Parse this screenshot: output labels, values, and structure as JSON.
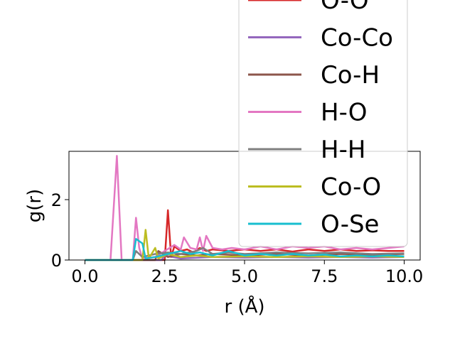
{
  "chart_data": {
    "type": "line",
    "xlabel": "r (Å)",
    "ylabel": "g(r)",
    "xlim": [
      -0.5,
      10.5
    ],
    "ylim": [
      0,
      3.6
    ],
    "xticks": [
      "0.0",
      "2.5",
      "5.0",
      "7.5",
      "10.0"
    ],
    "xtick_values": [
      0,
      2.5,
      5,
      7.5,
      10
    ],
    "yticks": [
      "0",
      "2"
    ],
    "ytick_values": [
      0,
      2
    ],
    "legend_position": "upper-right, partially cut off at the top",
    "series": [
      {
        "name": "O-O",
        "color": "#d62728",
        "points": [
          [
            0,
            0
          ],
          [
            2.5,
            0
          ],
          [
            2.6,
            1.65
          ],
          [
            2.7,
            0.1
          ],
          [
            2.8,
            0.45
          ],
          [
            3.0,
            0.3
          ],
          [
            3.2,
            0.35
          ],
          [
            3.4,
            0.25
          ],
          [
            3.6,
            0.4
          ],
          [
            3.8,
            0.3
          ],
          [
            4.0,
            0.35
          ],
          [
            4.5,
            0.3
          ],
          [
            5.0,
            0.35
          ],
          [
            5.5,
            0.3
          ],
          [
            6.0,
            0.35
          ],
          [
            6.5,
            0.28
          ],
          [
            7.0,
            0.35
          ],
          [
            7.5,
            0.3
          ],
          [
            8.0,
            0.35
          ],
          [
            8.5,
            0.3
          ],
          [
            9.0,
            0.32
          ],
          [
            9.5,
            0.3
          ],
          [
            10.0,
            0.3
          ]
        ]
      },
      {
        "name": "Co-Co",
        "color": "#9467bd",
        "points": [
          [
            0,
            0
          ],
          [
            2.4,
            0
          ],
          [
            2.5,
            0.15
          ],
          [
            3.0,
            0.05
          ],
          [
            4.0,
            0.1
          ],
          [
            5.0,
            0.08
          ],
          [
            6.0,
            0.1
          ],
          [
            7.0,
            0.08
          ],
          [
            8.0,
            0.1
          ],
          [
            9.0,
            0.08
          ],
          [
            10.0,
            0.1
          ]
        ]
      },
      {
        "name": "Co-H",
        "color": "#8c564b",
        "points": [
          [
            0,
            0
          ],
          [
            2.2,
            0
          ],
          [
            2.3,
            0.3
          ],
          [
            2.6,
            0.1
          ],
          [
            3.0,
            0.2
          ],
          [
            3.5,
            0.15
          ],
          [
            4.0,
            0.2
          ],
          [
            5.0,
            0.15
          ],
          [
            6.0,
            0.2
          ],
          [
            7.0,
            0.15
          ],
          [
            8.0,
            0.2
          ],
          [
            9.0,
            0.18
          ],
          [
            10.0,
            0.2
          ]
        ]
      },
      {
        "name": "H-O",
        "color": "#e377c2",
        "points": [
          [
            0,
            0
          ],
          [
            0.8,
            0
          ],
          [
            1.0,
            3.45
          ],
          [
            1.15,
            0
          ],
          [
            1.5,
            0
          ],
          [
            1.6,
            1.4
          ],
          [
            1.7,
            0.4
          ],
          [
            1.8,
            0.05
          ],
          [
            2.2,
            0.1
          ],
          [
            2.5,
            0.3
          ],
          [
            2.8,
            0.5
          ],
          [
            3.0,
            0.35
          ],
          [
            3.1,
            0.75
          ],
          [
            3.3,
            0.4
          ],
          [
            3.5,
            0.35
          ],
          [
            3.6,
            0.75
          ],
          [
            3.7,
            0.3
          ],
          [
            3.8,
            0.8
          ],
          [
            4.0,
            0.4
          ],
          [
            4.3,
            0.35
          ],
          [
            4.6,
            0.4
          ],
          [
            5.0,
            0.35
          ],
          [
            5.5,
            0.45
          ],
          [
            6.0,
            0.35
          ],
          [
            6.5,
            0.45
          ],
          [
            7.0,
            0.4
          ],
          [
            7.5,
            0.45
          ],
          [
            8.0,
            0.35
          ],
          [
            8.5,
            0.4
          ],
          [
            9.0,
            0.35
          ],
          [
            9.5,
            0.4
          ],
          [
            10.0,
            0.45
          ]
        ]
      },
      {
        "name": "H-H",
        "color": "#7f7f7f",
        "points": [
          [
            0,
            0
          ],
          [
            1.5,
            0
          ],
          [
            1.6,
            0.3
          ],
          [
            1.8,
            0.1
          ],
          [
            2.2,
            0.2
          ],
          [
            2.6,
            0.25
          ],
          [
            3.0,
            0.2
          ],
          [
            3.5,
            0.3
          ],
          [
            3.7,
            0.4
          ],
          [
            4.0,
            0.2
          ],
          [
            4.5,
            0.25
          ],
          [
            5.0,
            0.2
          ],
          [
            6.0,
            0.25
          ],
          [
            7.0,
            0.22
          ],
          [
            8.0,
            0.25
          ],
          [
            9.0,
            0.2
          ],
          [
            10.0,
            0.22
          ]
        ]
      },
      {
        "name": "Co-O",
        "color": "#bcbd22",
        "points": [
          [
            0,
            0
          ],
          [
            1.8,
            0
          ],
          [
            1.9,
            1.0
          ],
          [
            2.0,
            0.05
          ],
          [
            2.2,
            0.4
          ],
          [
            2.3,
            0.05
          ],
          [
            2.6,
            0.2
          ],
          [
            3.0,
            0.1
          ],
          [
            3.5,
            0.15
          ],
          [
            4.0,
            0.1
          ],
          [
            5.0,
            0.12
          ],
          [
            6.0,
            0.1
          ],
          [
            7.0,
            0.12
          ],
          [
            8.0,
            0.1
          ],
          [
            9.0,
            0.12
          ],
          [
            10.0,
            0.1
          ]
        ]
      },
      {
        "name": "O-Se",
        "color": "#17becf",
        "points": [
          [
            0,
            0
          ],
          [
            1.5,
            0
          ],
          [
            1.6,
            0.7
          ],
          [
            1.8,
            0.55
          ],
          [
            1.9,
            0.05
          ],
          [
            2.2,
            0.1
          ],
          [
            2.6,
            0.2
          ],
          [
            3.0,
            0.3
          ],
          [
            3.3,
            0.2
          ],
          [
            3.6,
            0.25
          ],
          [
            4.0,
            0.15
          ],
          [
            4.5,
            0.3
          ],
          [
            5.0,
            0.15
          ],
          [
            5.5,
            0.2
          ],
          [
            6.0,
            0.15
          ],
          [
            6.5,
            0.2
          ],
          [
            7.0,
            0.15
          ],
          [
            7.5,
            0.18
          ],
          [
            8.0,
            0.12
          ],
          [
            8.5,
            0.15
          ],
          [
            9.0,
            0.12
          ],
          [
            9.5,
            0.15
          ],
          [
            10.0,
            0.12
          ]
        ]
      }
    ]
  }
}
